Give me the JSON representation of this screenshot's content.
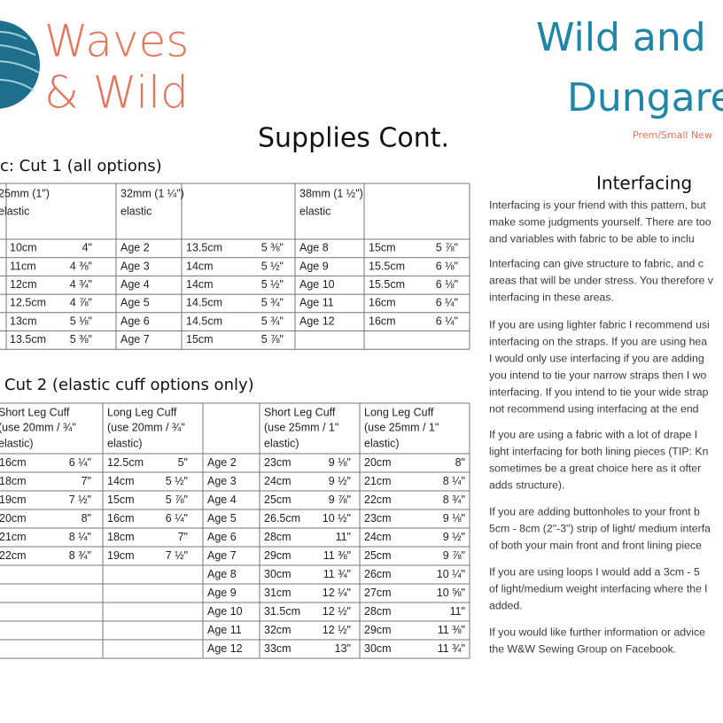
{
  "header": {
    "brand_lines": [
      "Waves",
      "& Wild"
    ],
    "title_lines": [
      "Wild and",
      "Dungare"
    ],
    "subtitle": "Prem/Small New"
  },
  "page_title": "Supplies Cont.",
  "table1": {
    "caption": "c: Cut 1 (all options)",
    "headers": [
      [
        "25mm (1\")",
        "elastic"
      ],
      null,
      [
        "32mm (1 ¼\")",
        "elastic"
      ],
      null,
      [
        "38mm (1 ½\")",
        "elastic"
      ]
    ],
    "rows": [
      [
        "10cm",
        "4\"",
        "Age 2",
        "13.5cm",
        "5 ⅜\"",
        "Age 8",
        "15cm",
        "5 ⅞\""
      ],
      [
        "11cm",
        "4 ⅜\"",
        "Age 3",
        "14cm",
        "5 ½\"",
        "Age 9",
        "15.5cm",
        "6 ⅛\""
      ],
      [
        "12cm",
        "4 ¾\"",
        "Age 4",
        "14cm",
        "5 ½\"",
        "Age 10",
        "15.5cm",
        "6 ⅛\""
      ],
      [
        "12.5cm",
        "4 ⅞\"",
        "Age 5",
        "14.5cm",
        "5 ¾\"",
        "Age 11",
        "16cm",
        "6 ¼\""
      ],
      [
        "13cm",
        "5 ⅛\"",
        "Age 6",
        "14.5cm",
        "5 ¾\"",
        "Age 12",
        "16cm",
        "6 ¼\""
      ],
      [
        "13.5cm",
        "5 ⅜\"",
        "Age 7",
        "15cm",
        "5 ⅞\"",
        null,
        null,
        null
      ]
    ]
  },
  "table2": {
    "caption": "Cut 2 (elastic cuff options only)",
    "headers": [
      [
        "Short Leg Cuff",
        "(use 20mm / ¾\"",
        "elastic)"
      ],
      [
        "Long Leg Cuff",
        "(use 20mm / ¾\"",
        "elastic)"
      ],
      null,
      [
        "Short Leg Cuff",
        "(use 25mm / 1\"",
        "elastic)"
      ],
      [
        "Long Leg Cuff",
        "(use 25mm / 1\"",
        "elastic)"
      ]
    ],
    "rows": [
      [
        "16cm",
        "6 ¼\"",
        "12.5cm",
        "5\"",
        "Age 2",
        "23cm",
        "9 ⅛\"",
        "20cm",
        "8\""
      ],
      [
        "18cm",
        "7\"",
        "14cm",
        "5 ½\"",
        "Age 3",
        "24cm",
        "9 ½\"",
        "21cm",
        "8 ¼\""
      ],
      [
        "19cm",
        "7 ½\"",
        "15cm",
        "5 ⅞\"",
        "Age 4",
        "25cm",
        "9 ⅞\"",
        "22cm",
        "8 ¾\""
      ],
      [
        "20cm",
        "8\"",
        "16cm",
        "6 ¼\"",
        "Age 5",
        "26.5cm",
        "10 ½\"",
        "23cm",
        "9 ⅛\""
      ],
      [
        "21cm",
        "8 ¼\"",
        "18cm",
        "7\"",
        "Age 6",
        "28cm",
        "11\"",
        "24cm",
        "9 ½\""
      ],
      [
        "22cm",
        "8 ¾\"",
        "19cm",
        "7 ½\"",
        "Age 7",
        "29cm",
        "11 ⅜\"",
        "25cm",
        "9 ⅞\""
      ],
      [
        null,
        null,
        null,
        null,
        "Age 8",
        "30cm",
        "11 ¾\"",
        "26cm",
        "10 ¼\""
      ],
      [
        null,
        null,
        null,
        null,
        "Age 9",
        "31cm",
        "12 ¼\"",
        "27cm",
        "10 ⅝\""
      ],
      [
        null,
        null,
        null,
        null,
        "Age 10",
        "31.5cm",
        "12 ½\"",
        "28cm",
        "11\""
      ],
      [
        null,
        null,
        null,
        null,
        "Age 11",
        "32cm",
        "12 ½\"",
        "29cm",
        "11 ⅜\""
      ],
      [
        null,
        null,
        null,
        null,
        "Age 12",
        "33cm",
        "13\"",
        "30cm",
        "11 ¾\""
      ]
    ]
  },
  "interfacing": {
    "heading": "Interfacing",
    "paragraphs": [
      [
        "Interfacing is your friend with this pattern, but",
        "make some judgments yourself. There are too",
        "and variables with fabric to be able to inclu"
      ],
      [
        "Interfacing can give structure to fabric, and c",
        "areas that will be under stress. You therefore v",
        "interfacing in these areas."
      ],
      [
        "If you are using lighter fabric I recommend usi",
        "interfacing on the straps. If you are using hea",
        "I would only use interfacing if you are adding",
        "you intend to tie your narrow straps then I wo",
        "interfacing. If you intend to tie your wide strap",
        "not recommend using interfacing at the end"
      ],
      [
        "If you are using a fabric with a lot of drape I",
        "light interfacing for both lining pieces (TIP: Kn",
        "sometimes be a great choice here as it ofter",
        "adds structure)."
      ],
      [
        "If you are adding buttonholes to your front b",
        "5cm - 8cm (2\"-3\") strip of light/ medium interfa",
        "of both your main front and front lining piece"
      ],
      [
        "If you are using loops I would add a 3cm - 5",
        "of light/medium weight interfacing where the l",
        "added."
      ],
      [
        "If you would like further information or advice",
        "the W&W Sewing Group on Facebook."
      ]
    ]
  }
}
